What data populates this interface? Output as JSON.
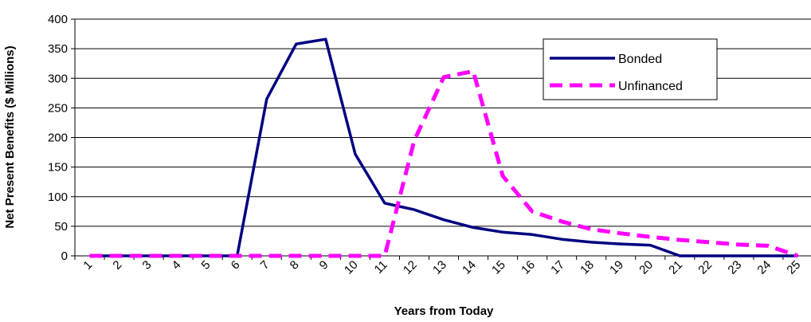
{
  "chart_data": {
    "type": "line",
    "title": "",
    "xlabel": "Years from Today",
    "ylabel": "Net Present Benefits ($ Millions)",
    "x": [
      1,
      2,
      3,
      4,
      5,
      6,
      7,
      8,
      9,
      10,
      11,
      12,
      13,
      14,
      15,
      16,
      17,
      18,
      19,
      20,
      21,
      22,
      23,
      24,
      25
    ],
    "ylim": [
      0,
      400
    ],
    "yticks": [
      0,
      50,
      100,
      150,
      200,
      250,
      300,
      350,
      400
    ],
    "grid": true,
    "legend_position": "top-right",
    "series": [
      {
        "name": "Bonded",
        "color": "#000080",
        "style": "solid",
        "values": [
          0,
          0,
          0,
          0,
          0,
          0,
          265,
          358,
          366,
          172,
          89,
          78,
          61,
          48,
          40,
          36,
          28,
          23,
          20,
          18,
          0,
          0,
          0,
          0,
          0
        ]
      },
      {
        "name": "Unfinanced",
        "color": "#FF00FF",
        "style": "dashed",
        "values": [
          0,
          0,
          0,
          0,
          0,
          0,
          0,
          0,
          0,
          0,
          0,
          195,
          302,
          312,
          135,
          75,
          58,
          45,
          38,
          32,
          27,
          23,
          19,
          17,
          0
        ]
      }
    ]
  }
}
